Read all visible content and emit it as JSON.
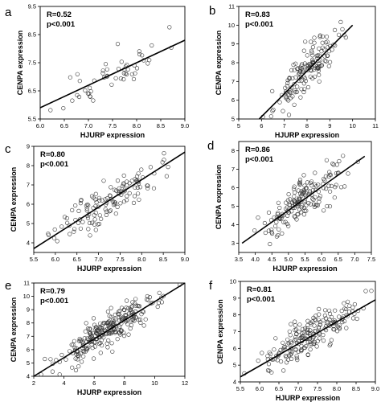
{
  "chart_data": [
    {
      "panel": "a",
      "type": "scatter",
      "xlabel": "HJURP expression",
      "ylabel": "CENPA expression",
      "stat_r": "R=0.52",
      "stat_p": "p<0.001",
      "xlim": [
        6.0,
        9.0
      ],
      "ylim": [
        5.5,
        9.5
      ],
      "xticks": [
        "6.0",
        "6.5",
        "7.0",
        "7.5",
        "8.0",
        "8.5",
        "9.0"
      ],
      "yticks": [
        "5.5",
        "6.5",
        "7.5",
        "8.5",
        "9.5"
      ],
      "fit": {
        "x": [
          6.0,
          9.0
        ],
        "y": [
          5.9,
          8.3
        ]
      },
      "seed": 11,
      "n": 52
    },
    {
      "panel": "b",
      "type": "scatter",
      "xlabel": "HJURP expression",
      "ylabel": "CENPA expression",
      "stat_r": "R=0.83",
      "stat_p": "p<0.001",
      "xlim": [
        5,
        11
      ],
      "ylim": [
        5,
        11
      ],
      "xticks": [
        "5",
        "6",
        "7",
        "8",
        "9",
        "10",
        "11"
      ],
      "yticks": [
        "5",
        "6",
        "7",
        "8",
        "9",
        "10",
        "11"
      ],
      "fit": {
        "x": [
          5.9,
          10.0
        ],
        "y": [
          5.0,
          10.0
        ]
      },
      "seed": 23,
      "n": 150
    },
    {
      "panel": "c",
      "type": "scatter",
      "xlabel": "HJURP expression",
      "ylabel": "CENPA expression",
      "stat_r": "R=0.80",
      "stat_p": "p<0.001",
      "xlim": [
        5.5,
        9.0
      ],
      "ylim": [
        3.5,
        9.0
      ],
      "xticks": [
        "5.5",
        "6.0",
        "6.5",
        "7.0",
        "7.5",
        "8.0",
        "8.5",
        "9.0"
      ],
      "yticks": [
        "4",
        "5",
        "6",
        "7",
        "8",
        "9"
      ],
      "fit": {
        "x": [
          5.5,
          9.0
        ],
        "y": [
          3.7,
          8.7
        ]
      },
      "seed": 37,
      "n": 130
    },
    {
      "panel": "d",
      "type": "scatter",
      "xlabel": "HJURP expression",
      "ylabel": "CENPA expression",
      "stat_r": "R=0.86",
      "stat_p": "p<0.001",
      "xlim": [
        3.5,
        7.5
      ],
      "ylim": [
        2.5,
        8.5
      ],
      "xticks": [
        "3.5",
        "4.0",
        "4.5",
        "5.0",
        "5.5",
        "6.0",
        "6.5",
        "7.0",
        "7.5"
      ],
      "yticks": [
        "3",
        "4",
        "5",
        "6",
        "7",
        "8"
      ],
      "fit": {
        "x": [
          3.6,
          7.3
        ],
        "y": [
          3.0,
          7.7
        ]
      },
      "seed": 41,
      "n": 170
    },
    {
      "panel": "e",
      "type": "scatter",
      "xlabel": "HJURP expression",
      "ylabel": "CENPA expression",
      "stat_r": "R=0.79",
      "stat_p": "p<0.001",
      "xlim": [
        2,
        12
      ],
      "ylim": [
        4,
        11
      ],
      "xticks": [
        "2",
        "4",
        "6",
        "8",
        "10",
        "12"
      ],
      "yticks": [
        "4",
        "5",
        "6",
        "7",
        "8",
        "9",
        "10",
        "11"
      ],
      "fit": {
        "x": [
          2.0,
          12.0
        ],
        "y": [
          4.0,
          11.0
        ]
      },
      "seed": 53,
      "n": 260
    },
    {
      "panel": "f",
      "type": "scatter",
      "xlabel": "HJURP expression",
      "ylabel": "CENPA expression",
      "stat_r": "R=0.81",
      "stat_p": "p<0.001",
      "xlim": [
        5.5,
        9.0
      ],
      "ylim": [
        4,
        10
      ],
      "xticks": [
        "5.5",
        "6.0",
        "6.5",
        "7.0",
        "7.5",
        "8.0",
        "8.5",
        "9.0"
      ],
      "yticks": [
        "4",
        "5",
        "6",
        "7",
        "8",
        "9",
        "10"
      ],
      "fit": {
        "x": [
          5.5,
          9.0
        ],
        "y": [
          4.3,
          8.9
        ]
      },
      "seed": 67,
      "n": 200
    }
  ]
}
